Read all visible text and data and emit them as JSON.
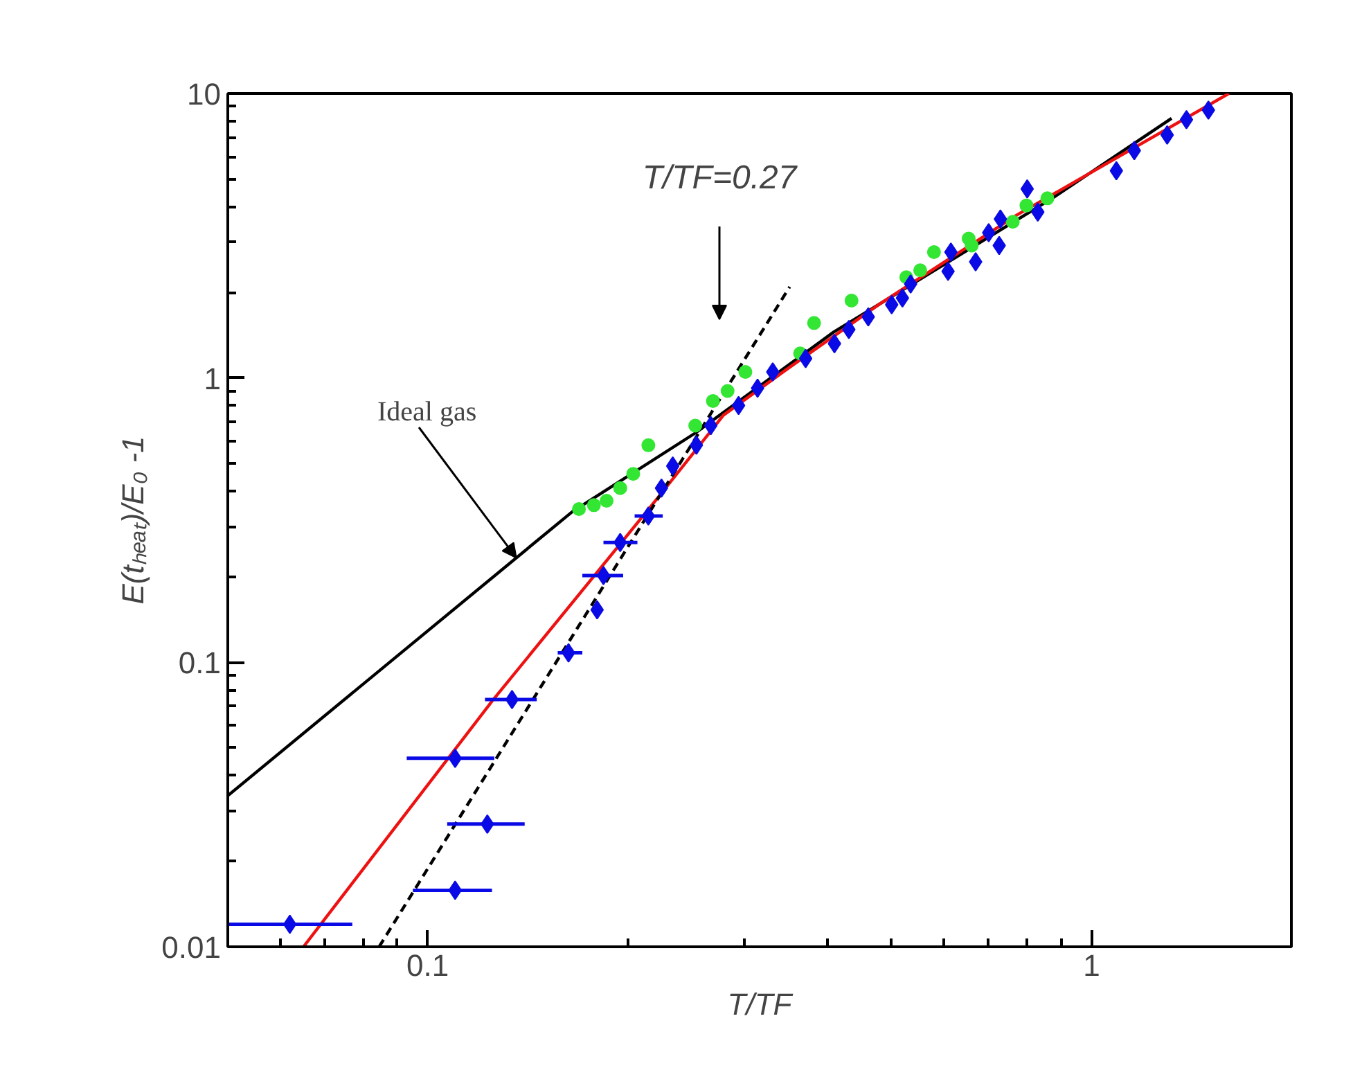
{
  "chart_data": {
    "type": "scatter",
    "xlabel": "T/TF",
    "ylabel": "E(tₕₑₐₜ)/E₀ -1",
    "log": "xy",
    "grid": false,
    "xlim": [
      0.05,
      2
    ],
    "ylim": [
      0.01,
      10
    ],
    "xticks": [
      {
        "value": 0.06,
        "label": null
      },
      {
        "value": 0.07,
        "label": null
      },
      {
        "value": 0.08,
        "label": null
      },
      {
        "value": 0.09,
        "label": null
      },
      0.1,
      {
        "value": 0.2,
        "label": null
      },
      {
        "value": 0.3,
        "label": null
      },
      {
        "value": 0.4,
        "label": null
      },
      {
        "value": 0.5,
        "label": null
      },
      {
        "value": 0.6,
        "label": null
      },
      {
        "value": 0.7,
        "label": null
      },
      {
        "value": 0.8,
        "label": null
      },
      {
        "value": 0.9,
        "label": null
      },
      1
    ],
    "yticks": [
      0.01,
      {
        "value": 0.02,
        "label": null
      },
      {
        "value": 0.03,
        "label": null
      },
      {
        "value": 0.04,
        "label": null
      },
      {
        "value": 0.05,
        "label": null
      },
      {
        "value": 0.06,
        "label": null
      },
      {
        "value": 0.07,
        "label": null
      },
      {
        "value": 0.08,
        "label": null
      },
      {
        "value": 0.09,
        "label": null
      },
      0.1,
      {
        "value": 0.2,
        "label": null
      },
      {
        "value": 0.3,
        "label": null
      },
      {
        "value": 0.4,
        "label": null
      },
      {
        "value": 0.5,
        "label": null
      },
      {
        "value": 0.6,
        "label": null
      },
      {
        "value": 0.7,
        "label": null
      },
      {
        "value": 0.8,
        "label": null
      },
      {
        "value": 0.9,
        "label": null
      },
      1,
      {
        "value": 2,
        "label": null
      },
      {
        "value": 3,
        "label": null
      },
      {
        "value": 4,
        "label": null
      },
      {
        "value": 5,
        "label": null
      },
      {
        "value": 6,
        "label": null
      },
      {
        "value": 7,
        "label": null
      },
      {
        "value": 8,
        "label": null
      },
      {
        "value": 9,
        "label": null
      },
      10
    ],
    "annotations": [
      "T/TF=0.27",
      {
        "text": "Ideal gas",
        "x": 0.136,
        "y": 0.233
      }
    ],
    "series": [
      {
        "type": "line",
        "color": "#000000",
        "line_style": "solid",
        "x": [
          0.05,
          0.165,
          0.253,
          0.409,
          0.879,
          1.32
        ],
        "values": [
          0.034,
          0.338,
          0.64,
          1.45,
          4.33,
          8.18
        ]
      },
      {
        "type": "line",
        "color": "#ee1111",
        "line_style": "solid",
        "x": [
          0.065,
          0.125,
          0.222,
          0.279,
          0.347,
          0.478,
          0.772,
          1.61
        ],
        "values": [
          0.01,
          0.073,
          0.378,
          0.74,
          1.07,
          1.81,
          3.74,
          10
        ]
      },
      {
        "type": "line",
        "color": "#000000",
        "line_style": "dashed",
        "x": [
          0.0845,
          0.351
        ],
        "values": [
          0.01,
          2.09
        ]
      },
      {
        "marker": "circle",
        "color": "#33e633",
        "x": [
          0.169,
          0.178,
          0.186,
          0.195,
          0.204,
          0.215,
          0.253,
          0.269,
          0.283,
          0.301,
          0.364,
          0.382,
          0.435,
          0.526,
          0.552,
          0.579,
          0.653,
          0.66,
          0.761,
          0.798,
          0.858
        ],
        "values": [
          0.346,
          0.357,
          0.37,
          0.41,
          0.46,
          0.58,
          0.68,
          0.83,
          0.9,
          1.05,
          1.22,
          1.56,
          1.87,
          2.26,
          2.39,
          2.77,
          3.09,
          2.92,
          3.54,
          4.04,
          4.28
        ]
      },
      {
        "marker": "diamond",
        "color": "#0a0ae6",
        "x": [
          0.062,
          0.11,
          0.11,
          0.123,
          0.134,
          0.163,
          0.18,
          0.184,
          0.195,
          0.215,
          0.225,
          0.234,
          0.254,
          0.267,
          0.294,
          0.314,
          0.331,
          0.371,
          0.41,
          0.431,
          0.461,
          0.5,
          0.519,
          0.534,
          0.608,
          0.614,
          0.669,
          0.7,
          0.726,
          0.729,
          0.8,
          0.83,
          1.09,
          1.16,
          1.3,
          1.39,
          1.5
        ],
        "values": [
          0.012,
          0.046,
          0.0158,
          0.027,
          0.074,
          0.108,
          0.153,
          0.202,
          0.264,
          0.327,
          0.41,
          0.49,
          0.58,
          0.68,
          0.8,
          0.92,
          1.05,
          1.17,
          1.32,
          1.48,
          1.64,
          1.81,
          1.91,
          2.14,
          2.37,
          2.77,
          2.56,
          3.24,
          2.92,
          3.62,
          4.62,
          3.83,
          5.35,
          6.3,
          7.15,
          8.09,
          8.74
        ],
        "xerrors": [
          [
            0.05,
            0.077
          ],
          [
            0.093,
            0.126
          ],
          [
            0.095,
            0.125
          ],
          [
            0.107,
            0.14
          ],
          [
            0.122,
            0.146
          ],
          [
            0.157,
            0.171
          ],
          null,
          [
            0.171,
            0.197
          ],
          [
            0.184,
            0.207
          ],
          [
            0.205,
            0.226
          ],
          null,
          null,
          null,
          null,
          null,
          null,
          null,
          null,
          null,
          null,
          null,
          null,
          null,
          null,
          null,
          null,
          null,
          null,
          null,
          null,
          null,
          null,
          null,
          null,
          null,
          null,
          null
        ]
      }
    ]
  }
}
